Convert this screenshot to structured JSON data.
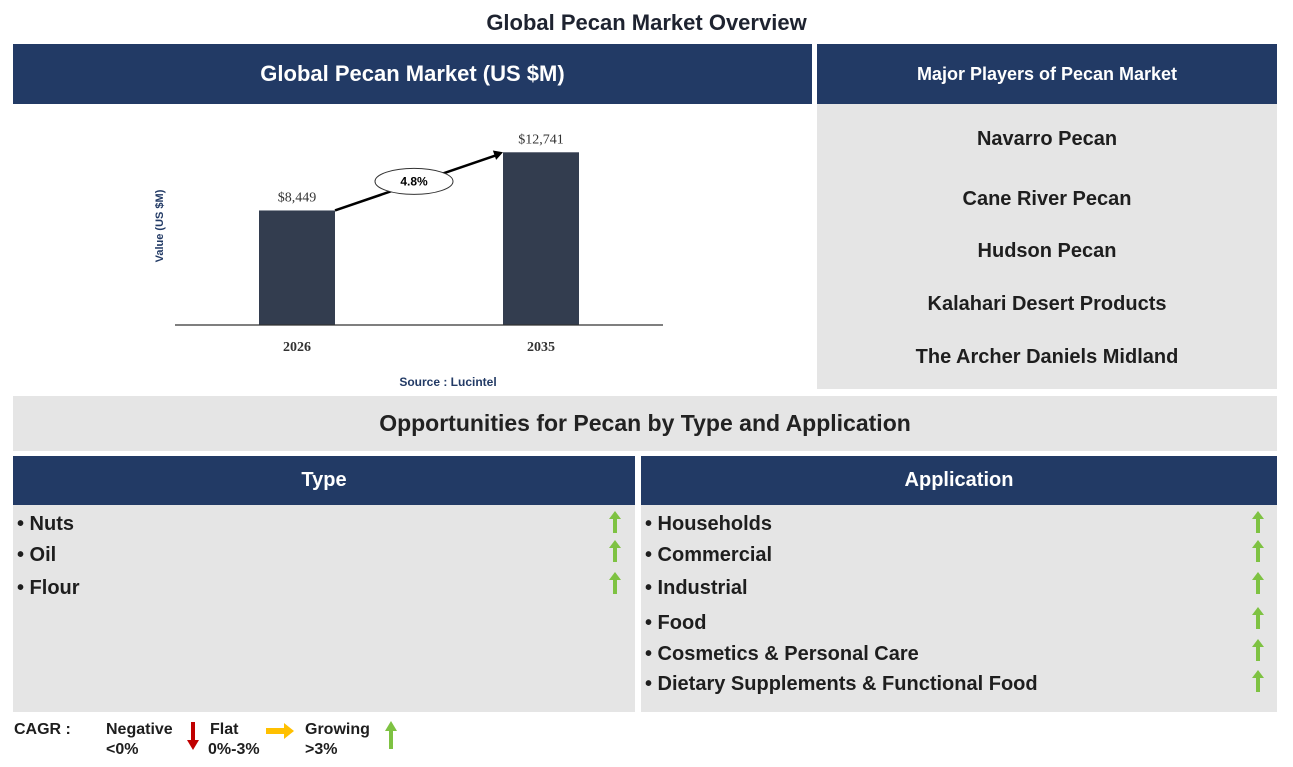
{
  "page_title": "Global Pecan Market Overview",
  "chart_header": "Global Pecan Market (US $M)",
  "players": {
    "header": "Major Players of Pecan Market",
    "items": [
      "Navarro Pecan",
      "Cane River Pecan",
      "Hudson Pecan",
      "Kalahari Desert Products",
      "The Archer Daniels Midland"
    ]
  },
  "opportunities_title": "Opportunities for Pecan by Type and Application",
  "type": {
    "header": "Type",
    "items": [
      "• Nuts",
      "• Oil",
      "• Flour"
    ]
  },
  "application": {
    "header": "Application",
    "items": [
      "• Households",
      "• Commercial",
      "• Industrial",
      "• Food",
      "• Cosmetics & Personal Care",
      "• Dietary Supplements & Functional Food"
    ]
  },
  "legend": {
    "cagr_label": "CAGR :",
    "negative_label": "Negative",
    "negative_range": "<0%",
    "flat_label": "Flat",
    "flat_range": "0%-3%",
    "growing_label": "Growing",
    "growing_range": ">3%"
  },
  "colors": {
    "navy": "#223a65",
    "bar": "#333d4f",
    "panel_gray": "#e5e5e5",
    "up_green": "#7ec242",
    "down_red": "#c00000",
    "flat_yellow": "#ffc000"
  },
  "icons": {
    "growing": "up-arrow-icon",
    "negative": "down-arrow-icon",
    "flat": "right-arrow-icon"
  },
  "chart_data": {
    "type": "bar",
    "categories": [
      "2026",
      "2035"
    ],
    "values": [
      8449,
      12741
    ],
    "value_labels": [
      "$8,449",
      "$12,741"
    ],
    "ylabel": "Value (US $M)",
    "cagr_label": "4.8%",
    "source": "Source : Lucintel",
    "ylim": [
      0,
      13500
    ]
  }
}
